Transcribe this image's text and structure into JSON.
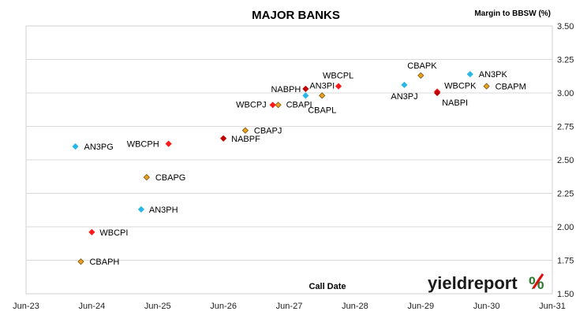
{
  "chart_data": {
    "type": "scatter",
    "title": "MAJOR BANKS",
    "xlabel": "Call Date",
    "ylabel": "Margin to BBSW (%)",
    "x_ticks": [
      "Jun-23",
      "Jun-24",
      "Jun-25",
      "Jun-26",
      "Jun-27",
      "Jun-28",
      "Jun-29",
      "Jun-30",
      "Jun-31"
    ],
    "y_ticks": [
      "1.50",
      "1.75",
      "2.00",
      "2.25",
      "2.50",
      "2.75",
      "3.00",
      "3.25",
      "3.50"
    ],
    "xlim": [
      "2023-06",
      "2031-06"
    ],
    "ylim": [
      1.5,
      3.5
    ],
    "grid": "horizontal",
    "legend": "none",
    "colors": {
      "ANZ": "#29b6e8",
      "CBA": "#e8a020",
      "WBC": "#ff1a1a",
      "NAB": "#c00000"
    },
    "points": [
      {
        "label": "AN3PG",
        "bank": "ANZ",
        "x": "2024-03",
        "y": 2.6
      },
      {
        "label": "AN3PH",
        "bank": "ANZ",
        "x": "2025-03",
        "y": 2.13
      },
      {
        "label": "AN3PI",
        "bank": "ANZ",
        "x": "2027-09",
        "y": 2.98
      },
      {
        "label": "AN3PJ",
        "bank": "ANZ",
        "x": "2029-03",
        "y": 3.06
      },
      {
        "label": "AN3PK",
        "bank": "ANZ",
        "x": "2030-03",
        "y": 3.14
      },
      {
        "label": "CBAPH",
        "bank": "CBA",
        "x": "2024-04",
        "y": 1.74
      },
      {
        "label": "CBAPG",
        "bank": "CBA",
        "x": "2025-04",
        "y": 2.37
      },
      {
        "label": "CBAPJ",
        "bank": "CBA",
        "x": "2026-10",
        "y": 2.72
      },
      {
        "label": "CBAPI",
        "bank": "CBA",
        "x": "2027-04",
        "y": 2.91
      },
      {
        "label": "CBAPL",
        "bank": "CBA",
        "x": "2027-12",
        "y": 2.98
      },
      {
        "label": "CBAPK",
        "bank": "CBA",
        "x": "2029-06",
        "y": 3.13
      },
      {
        "label": "CBAPM",
        "bank": "CBA",
        "x": "2030-06",
        "y": 3.05
      },
      {
        "label": "WBCPI",
        "bank": "WBC",
        "x": "2024-06",
        "y": 1.96
      },
      {
        "label": "WBCPH",
        "bank": "WBC",
        "x": "2025-08",
        "y": 2.62
      },
      {
        "label": "WBCPJ",
        "bank": "WBC",
        "x": "2027-03",
        "y": 2.91
      },
      {
        "label": "WBCPL",
        "bank": "WBC",
        "x": "2028-03",
        "y": 3.05
      },
      {
        "label": "WBCPK",
        "bank": "WBC",
        "x": "2029-09",
        "y": 3.01
      },
      {
        "label": "NABPF",
        "bank": "NAB",
        "x": "2026-06",
        "y": 2.66
      },
      {
        "label": "NABPH",
        "bank": "NAB",
        "x": "2027-09",
        "y": 3.03
      },
      {
        "label": "NABPI",
        "bank": "NAB",
        "x": "2029-09",
        "y": 3.0
      }
    ]
  },
  "brand": {
    "text": "yieldreport",
    "symbol": "%"
  }
}
